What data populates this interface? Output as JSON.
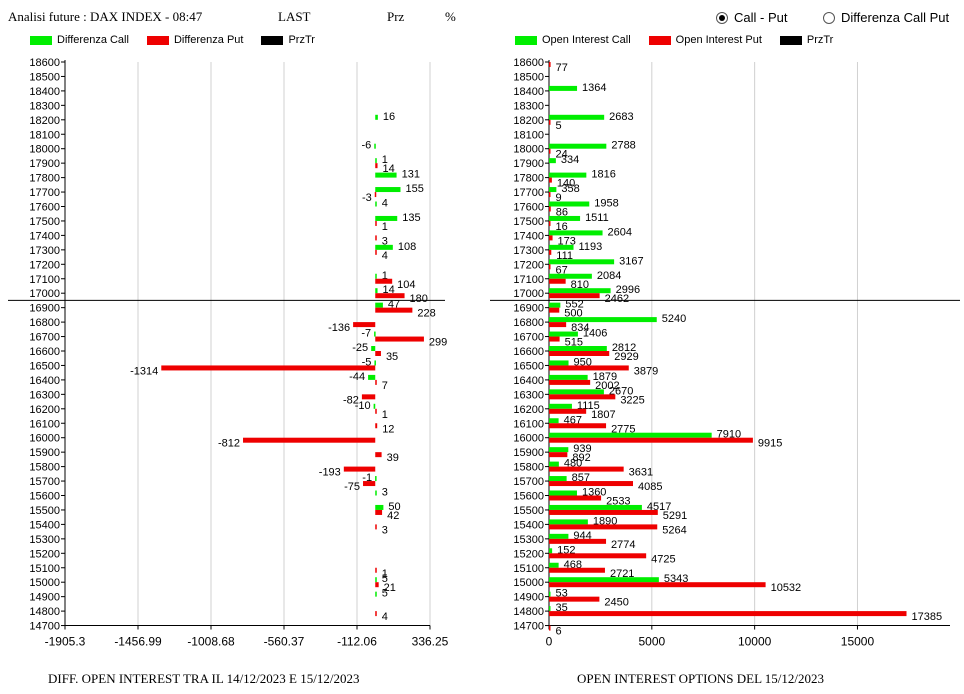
{
  "header": {
    "title": "Analisi future : DAX INDEX - 08:47",
    "last": "LAST",
    "prz": "Prz",
    "pct": "%"
  },
  "mode": {
    "option1": "Call - Put",
    "option2": "Differenza Call Put",
    "selected": "Call - Put"
  },
  "legend_left": [
    {
      "label": "Differenza Call",
      "color": "#00ee00"
    },
    {
      "label": "Differenza Put",
      "color": "#ee0000"
    },
    {
      "label": "PrzTr",
      "color": "#000000"
    }
  ],
  "legend_right": [
    {
      "label": "Open Interest Call",
      "color": "#00ee00"
    },
    {
      "label": "Open Interest Put",
      "color": "#ee0000"
    },
    {
      "label": "PrzTr",
      "color": "#000000"
    }
  ],
  "footer_left": "DIFF. OPEN INTEREST TRA IL 14/12/2023 E 15/12/2023",
  "footer_right": "OPEN INTEREST OPTIONS DEL 15/12/2023",
  "chart_data": [
    {
      "type": "bar",
      "orientation": "horizontal",
      "categories": [
        "18600",
        "18500",
        "18400",
        "18300",
        "18200",
        "18100",
        "18000",
        "17900",
        "17800",
        "17700",
        "17600",
        "17500",
        "17400",
        "17300",
        "17200",
        "17100",
        "17000",
        "16900",
        "16800",
        "16700",
        "16600",
        "16500",
        "16400",
        "16300",
        "16200",
        "16100",
        "16000",
        "15900",
        "15800",
        "15700",
        "15600",
        "15500",
        "15400",
        "15300",
        "15200",
        "15100",
        "15000",
        "14900",
        "14800",
        "14700"
      ],
      "series": [
        {
          "name": "Differenza Call",
          "color": "#00ee00",
          "values": [
            0,
            0,
            0,
            0,
            16,
            0,
            -6,
            1,
            131,
            155,
            4,
            135,
            0,
            108,
            0,
            1,
            14,
            47,
            0,
            -7,
            -25,
            -5,
            -44,
            0,
            -10,
            0,
            0,
            0,
            0,
            -1,
            3,
            50,
            0,
            0,
            0,
            0,
            5,
            5,
            0,
            0
          ]
        },
        {
          "name": "Differenza Put",
          "color": "#ee0000",
          "values": [
            0,
            0,
            0,
            0,
            0,
            0,
            0,
            14,
            0,
            -3,
            0,
            1,
            3,
            4,
            0,
            104,
            180,
            228,
            -136,
            299,
            35,
            -1314,
            7,
            -82,
            1,
            12,
            -812,
            39,
            -193,
            -75,
            0,
            42,
            3,
            0,
            0,
            1,
            21,
            0,
            4,
            0
          ]
        }
      ],
      "ticks": [
        "-1905.3",
        "-1456.99",
        "-1008.68",
        "-560.37",
        "-112.06",
        "336.25"
      ],
      "xlim": [
        -1905.3,
        336.25
      ],
      "przTr": 16950,
      "xlabel": "",
      "ylabel": ""
    },
    {
      "type": "bar",
      "orientation": "horizontal",
      "categories": [
        "18600",
        "18500",
        "18400",
        "18300",
        "18200",
        "18100",
        "18000",
        "17900",
        "17800",
        "17700",
        "17600",
        "17500",
        "17400",
        "17300",
        "17200",
        "17100",
        "17000",
        "16900",
        "16800",
        "16700",
        "16600",
        "16500",
        "16400",
        "16300",
        "16200",
        "16100",
        "16000",
        "15900",
        "15800",
        "15700",
        "15600",
        "15500",
        "15400",
        "15300",
        "15200",
        "15100",
        "15000",
        "14900",
        "14800",
        "14700"
      ],
      "series": [
        {
          "name": "Open Interest Call",
          "color": "#00ee00",
          "values": [
            0,
            0,
            1364,
            0,
            2683,
            0,
            2788,
            334,
            1816,
            358,
            1958,
            1511,
            2604,
            1193,
            3167,
            2084,
            2996,
            552,
            5240,
            1406,
            2812,
            950,
            1879,
            2670,
            1115,
            467,
            7910,
            939,
            480,
            857,
            1360,
            4517,
            1890,
            944,
            152,
            468,
            5343,
            53,
            35,
            0
          ]
        },
        {
          "name": "Open Interest Put",
          "color": "#ee0000",
          "values": [
            77,
            0,
            0,
            0,
            5,
            0,
            24,
            0,
            140,
            9,
            86,
            16,
            173,
            111,
            67,
            810,
            2462,
            500,
            834,
            515,
            2929,
            3879,
            2002,
            3225,
            1807,
            2775,
            9915,
            892,
            3631,
            4085,
            2533,
            5291,
            5264,
            2774,
            4725,
            2721,
            10532,
            2450,
            17385,
            6
          ]
        }
      ],
      "ticks": [
        "0",
        "5000",
        "10000",
        "15000"
      ],
      "xlim": [
        0,
        19500
      ],
      "przTr": 16950,
      "xlabel": "",
      "ylabel": ""
    }
  ]
}
